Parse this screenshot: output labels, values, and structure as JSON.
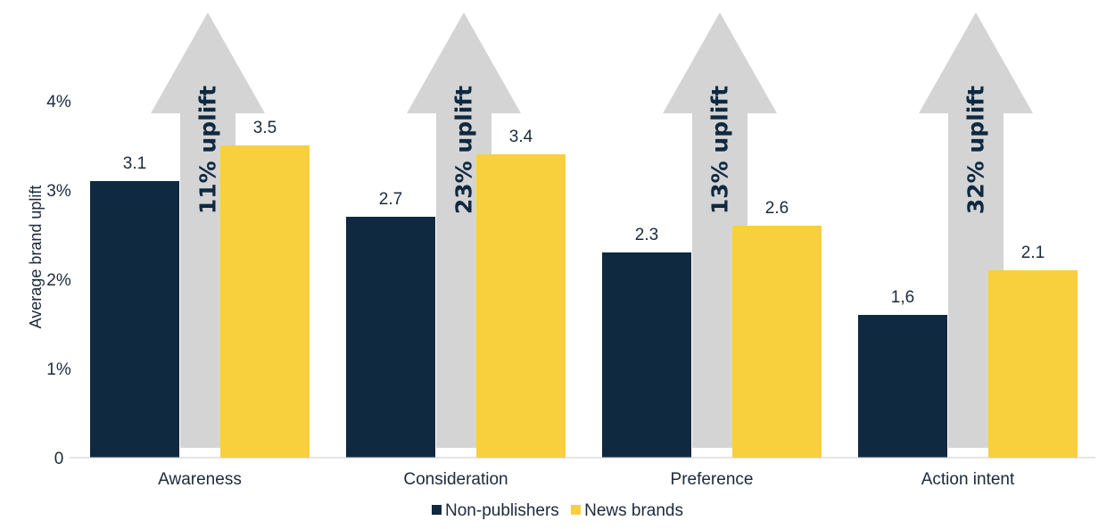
{
  "chart_data": {
    "type": "bar",
    "ylabel": "Average brand uplift",
    "ylim": [
      0,
      4
    ],
    "yticks": [
      "0",
      "1%",
      "2%",
      "3%",
      "4%"
    ],
    "categories": [
      "Awareness",
      "Consideration",
      "Preference",
      "Action intent"
    ],
    "series": [
      {
        "name": "Non-publishers",
        "color": "#0f2940",
        "values": [
          3.1,
          2.7,
          2.3,
          1.6
        ],
        "labels": [
          "3.1",
          "2.7",
          "2.3",
          "1,6"
        ]
      },
      {
        "name": "News brands",
        "color": "#f8cf3c",
        "values": [
          3.5,
          3.4,
          2.6,
          2.1
        ],
        "labels": [
          "3.5",
          "3.4",
          "2.6",
          "2.1"
        ]
      }
    ],
    "annotations": [
      "11% uplift",
      "23% uplift",
      "13% uplift",
      "32% uplift"
    ],
    "arrow_color": "#d4d4d4",
    "grid": false,
    "legend_position": "bottom"
  }
}
